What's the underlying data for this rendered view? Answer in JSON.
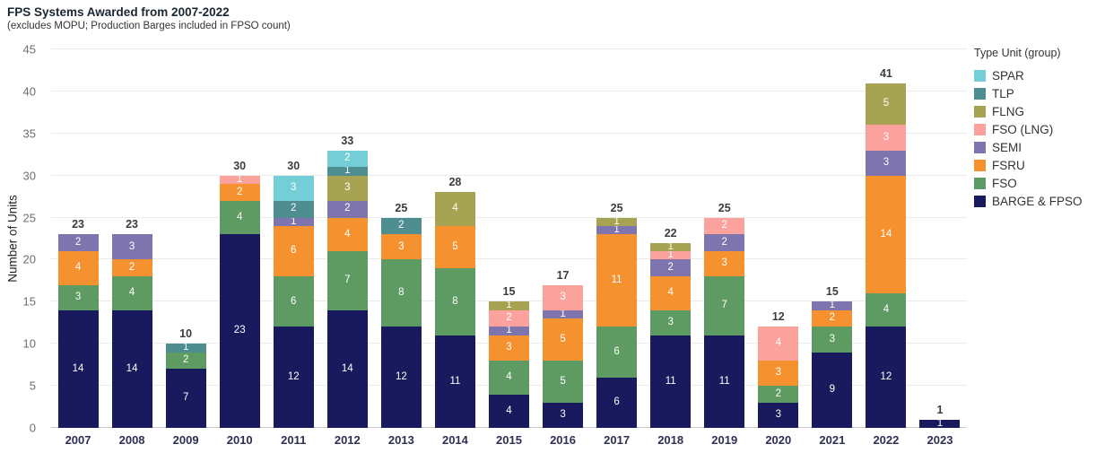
{
  "chart_data": {
    "type": "bar",
    "stacked": true,
    "title": "FPS Systems Awarded from 2007-2022",
    "subtitle": "(excludes MOPU; Production Barges included in FPSO count)",
    "xlabel": "",
    "ylabel": "Number of Units",
    "ylim": [
      0,
      45
    ],
    "yticks": [
      0,
      5,
      10,
      15,
      20,
      25,
      30,
      35,
      40,
      45
    ],
    "grid": true,
    "legend_position": "right",
    "categories": [
      "2007",
      "2008",
      "2009",
      "2010",
      "2011",
      "2012",
      "2013",
      "2014",
      "2015",
      "2016",
      "2017",
      "2018",
      "2019",
      "2020",
      "2021",
      "2022",
      "2023"
    ],
    "series": [
      {
        "name": "BARGE & FPSO",
        "color": "#191a5e",
        "values": [
          14,
          14,
          7,
          23,
          12,
          14,
          12,
          11,
          4,
          3,
          6,
          11,
          11,
          3,
          9,
          12,
          1
        ]
      },
      {
        "name": "FSO",
        "color": "#5d9b62",
        "values": [
          3,
          4,
          2,
          4,
          6,
          7,
          8,
          8,
          4,
          5,
          6,
          3,
          7,
          2,
          3,
          4,
          0
        ]
      },
      {
        "name": "FSRU",
        "color": "#f5922f",
        "values": [
          4,
          2,
          0,
          2,
          6,
          4,
          3,
          5,
          3,
          5,
          11,
          4,
          3,
          3,
          2,
          14,
          0
        ]
      },
      {
        "name": "SEMI",
        "color": "#7e74ae",
        "values": [
          2,
          3,
          0,
          0,
          1,
          2,
          0,
          0,
          1,
          1,
          1,
          2,
          2,
          0,
          1,
          3,
          0
        ]
      },
      {
        "name": "FSO (LNG)",
        "color": "#fba29c",
        "values": [
          0,
          0,
          0,
          1,
          0,
          0,
          0,
          0,
          2,
          3,
          0,
          1,
          2,
          4,
          0,
          3,
          0
        ]
      },
      {
        "name": "FLNG",
        "color": "#a6a352",
        "values": [
          0,
          0,
          0,
          0,
          0,
          3,
          0,
          4,
          1,
          0,
          1,
          1,
          0,
          0,
          0,
          5,
          0
        ]
      },
      {
        "name": "TLP",
        "color": "#4e8d90",
        "values": [
          0,
          0,
          1,
          0,
          2,
          1,
          2,
          0,
          0,
          0,
          0,
          0,
          0,
          0,
          0,
          0,
          0
        ]
      },
      {
        "name": "SPAR",
        "color": "#74ced8",
        "values": [
          0,
          0,
          0,
          0,
          3,
          2,
          0,
          0,
          0,
          0,
          0,
          0,
          0,
          0,
          0,
          0,
          0
        ]
      }
    ],
    "totals": [
      23,
      23,
      10,
      30,
      30,
      33,
      25,
      28,
      15,
      17,
      25,
      22,
      25,
      12,
      15,
      41,
      1
    ]
  },
  "legend": {
    "title": "Type Unit (group)",
    "items": [
      {
        "label": "SPAR",
        "color": "#74ced8"
      },
      {
        "label": "TLP",
        "color": "#4e8d90"
      },
      {
        "label": "FLNG",
        "color": "#a6a352"
      },
      {
        "label": "FSO (LNG)",
        "color": "#fba29c"
      },
      {
        "label": "SEMI",
        "color": "#7e74ae"
      },
      {
        "label": "FSRU",
        "color": "#f5922f"
      },
      {
        "label": "FSO",
        "color": "#5d9b62"
      },
      {
        "label": "BARGE & FPSO",
        "color": "#191a5e"
      }
    ]
  }
}
